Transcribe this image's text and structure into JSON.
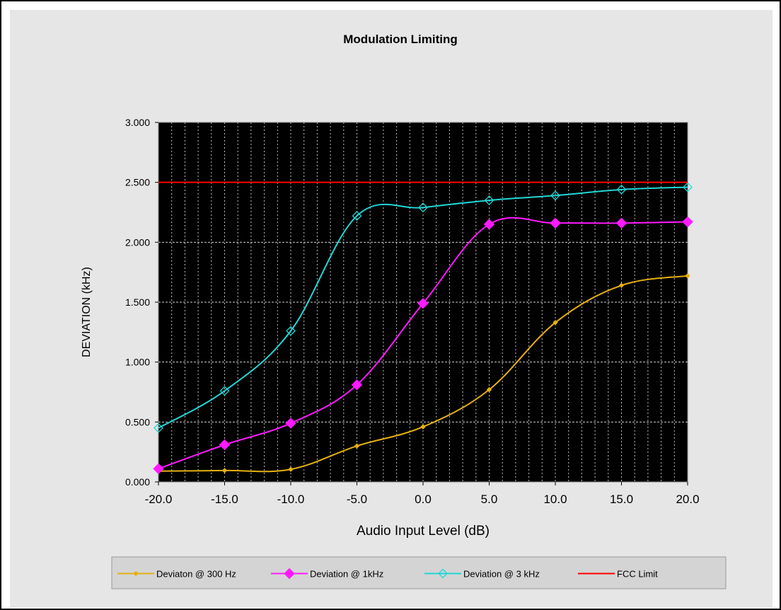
{
  "chart_data": {
    "type": "line",
    "title": "Modulation Limiting",
    "xlabel": "Audio Input Level (dB)",
    "ylabel": "DEVIATION (kHz)",
    "x": [
      -20,
      -15,
      -10,
      -5,
      0,
      5,
      10,
      15,
      20
    ],
    "x_tick_labels": [
      "-20.0",
      "-15.0",
      "-10.0",
      "-5.0",
      "0.0",
      "5.0",
      "10.0",
      "15.0",
      "20.0"
    ],
    "y_tick_labels": [
      "0.000",
      "0.500",
      "1.000",
      "1.500",
      "2.000",
      "2.500",
      "3.000"
    ],
    "xlim": [
      -20,
      20
    ],
    "ylim": [
      0,
      3
    ],
    "grid": true,
    "legend_position": "bottom",
    "plot_background": "#000000",
    "series": [
      {
        "name": "Deviaton @ 300 Hz",
        "color": "#e6b012",
        "marker": "small-dot",
        "values": [
          0.09,
          0.095,
          0.105,
          0.3,
          0.46,
          0.77,
          1.33,
          1.64,
          1.72
        ]
      },
      {
        "name": "Deviation @ 1kHz",
        "color": "#ff1aff",
        "marker": "filled-diamond",
        "values": [
          0.11,
          0.31,
          0.49,
          0.81,
          1.49,
          2.15,
          2.16,
          2.16,
          2.17
        ]
      },
      {
        "name": "Deviation @ 3 kHz",
        "color": "#22d6d6",
        "marker": "open-diamond",
        "values": [
          0.45,
          0.76,
          1.26,
          2.22,
          2.29,
          2.35,
          2.39,
          2.44,
          2.46
        ]
      },
      {
        "name": "FCC Limit",
        "color": "#ff0000",
        "marker": "none",
        "values": [
          2.5,
          2.5,
          2.5,
          2.5,
          2.5,
          2.5,
          2.5,
          2.5,
          2.5
        ]
      }
    ]
  }
}
